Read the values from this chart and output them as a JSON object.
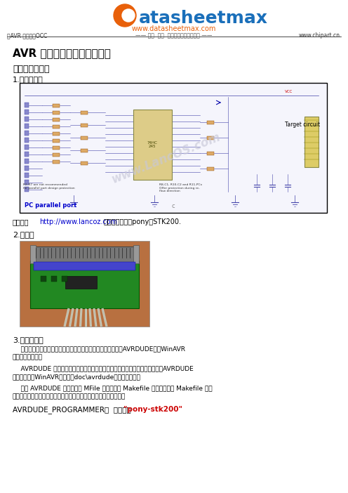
{
  "bg_color": "#ffffff",
  "header_logo_text": "atasheetmax",
  "header_logo_d_color": "#e8600a",
  "header_logo_text_color": "#1a6fba",
  "header_url": "www.datasheetmax.com",
  "header_url_color": "#e8600a",
  "header_left_text": "《AVR 单片机》OCC",
  "header_center_text": "—— 全面  快速  免费的数据表查询服务 ——",
  "header_right_text": "www.chipart.cn",
  "header_line_color": "#000000",
  "title": "AVR 单片机下载线制作与应用",
  "section1": "一．并行下载线",
  "subsection1": "1.电路原理图",
  "circuit_box_color": "#000000",
  "circuit_bg": "#f5f5fc",
  "circuit_watermark": "www.LancOS.com",
  "circuit_watermark_color": "#c8c8d8",
  "circuit_label_pc": "PC parallel port",
  "circuit_label_target": "Target circuit",
  "circuit_label_pc_color": "#0000cc",
  "circuit_label_target_color": "#000000",
  "caption_text": "本图源自",
  "caption_url": "http://www.lancoz.com",
  "caption_rest": "，本下载器也称pony版STK200.",
  "subsection2": "2.实物图",
  "photo_bg": "#b87040",
  "photo_board_color": "#228822",
  "section3_title": "3.上位机软件",
  "section3_text1": "    可用于此下载线的上位机软件很多，下面先介绍一下如何使用AVRDUDE这个WinAVR",
  "section3_text2": "内带的编程软件。",
  "section3_text3": "    AVRDUDE 是个命令行编程软件，所有的操作都通过命令行终端来实现。关于AVRDUDE",
  "section3_text4": "的说明请参考WinAVR安装目录doc\\avrdude中的说明文件。",
  "section3_text5": "    使用 AVRDUDE 程序前要对 MFile 生成的标准 Makefile 配置一下。在 Makefile 中如",
  "section3_text6": "下设置用于下载程序。在这段脚本里要正确设置编程器和接口选项：",
  "code_line": "AVRDUDE_PROGRAMMER：  要设置为  ",
  "code_value": "\"pony-stk200\"",
  "code_value_color": "#cc0000"
}
